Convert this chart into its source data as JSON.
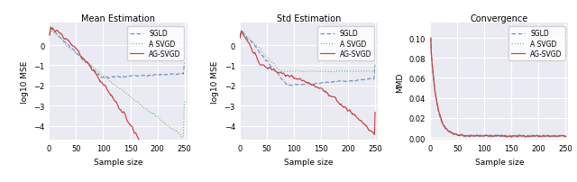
{
  "title1": "Mean Estimation",
  "title2": "Std Estimation",
  "title3": "Convergence",
  "xlabel": "Sample size",
  "ylabel1": "log10 MSE",
  "ylabel2": "log10 MSE",
  "ylabel3": "MMD",
  "x_ticks": [
    0,
    50,
    100,
    150,
    200,
    250
  ],
  "colors": {
    "SGLD": "#6f8fc4",
    "A_SVGD": "#7bbf7b",
    "AG_SVGD": "#c94040"
  },
  "styles": {
    "SGLD": "--",
    "A_SVGD": ":",
    "AG_SVGD": "-"
  },
  "bg_color": "#eaeaf2",
  "grid_color": "white",
  "seed": 17
}
